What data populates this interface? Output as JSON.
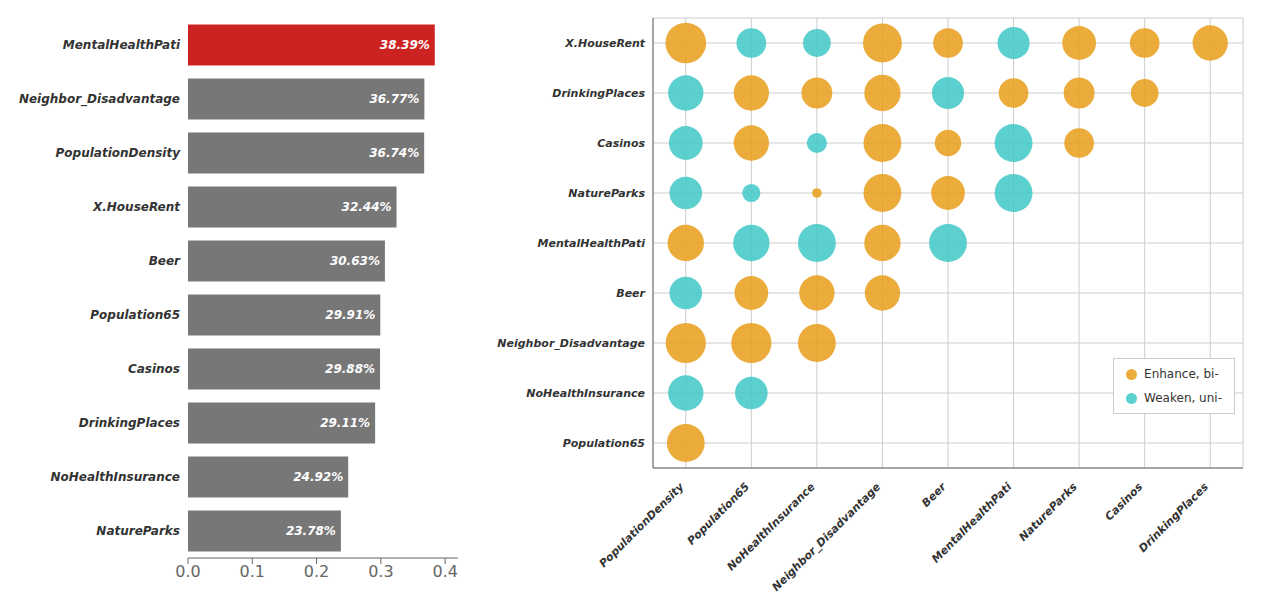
{
  "chart_data": [
    {
      "type": "bar",
      "orientation": "horizontal",
      "categories": [
        "MentalHealthPati",
        "Neighbor_Disadvantage",
        "PopulationDensity",
        "X.HouseRent",
        "Beer",
        "Population65",
        "Casinos",
        "DrinkingPlaces",
        "NoHealthInsurance",
        "NatureParks"
      ],
      "values": [
        0.3839,
        0.3677,
        0.3674,
        0.3244,
        0.3063,
        0.2991,
        0.2988,
        0.2911,
        0.2492,
        0.2378
      ],
      "value_labels": [
        "38.39%",
        "36.77%",
        "36.74%",
        "32.44%",
        "30.63%",
        "29.91%",
        "29.88%",
        "29.11%",
        "24.92%",
        "23.78%"
      ],
      "data_labels": true,
      "colors": [
        "#cc2222",
        "#777777",
        "#777777",
        "#777777",
        "#777777",
        "#777777",
        "#777777",
        "#777777",
        "#777777",
        "#777777"
      ],
      "xlim": [
        0,
        0.42
      ],
      "xticks": [
        {
          "value": 0,
          "label": "0.0"
        },
        0.1,
        0.2,
        0.3,
        0.4
      ],
      "grid": false
    },
    {
      "type": "scatter",
      "x_categories": [
        "PopulationDensity",
        "Population65",
        "NoHealthInsurance",
        "Neighbor_Disadvantage",
        "Beer",
        "MentalHealthPati",
        "NatureParks",
        "Casinos",
        "DrinkingPlaces"
      ],
      "y_categories": [
        "X.HouseRent",
        "DrinkingPlaces",
        "Casinos",
        "NatureParks",
        "MentalHealthPati",
        "Beer",
        "Neighbor_Disadvantage",
        "NoHealthInsurance",
        "Population65"
      ],
      "grid": true,
      "legend": "lower right",
      "series": [
        {
          "name": "Enhance, bi-",
          "color": "#E8A020",
          "x": [
            "PopulationDensity",
            "Neighbor_Disadvantage",
            "Beer",
            "NatureParks",
            "Casinos",
            "DrinkingPlaces",
            "Population65",
            "NoHealthInsurance",
            "Neighbor_Disadvantage",
            "MentalHealthPati",
            "NatureParks",
            "Casinos",
            "Population65",
            "Neighbor_Disadvantage",
            "Beer",
            "NatureParks",
            "NoHealthInsurance",
            "Neighbor_Disadvantage",
            "Beer",
            "PopulationDensity",
            "Neighbor_Disadvantage",
            "Population65",
            "NoHealthInsurance",
            "Neighbor_Disadvantage",
            "PopulationDensity",
            "Population65",
            "NoHealthInsurance",
            "PopulationDensity"
          ],
          "y": [
            "X.HouseRent",
            "X.HouseRent",
            "X.HouseRent",
            "X.HouseRent",
            "X.HouseRent",
            "X.HouseRent",
            "DrinkingPlaces",
            "DrinkingPlaces",
            "DrinkingPlaces",
            "DrinkingPlaces",
            "DrinkingPlaces",
            "DrinkingPlaces",
            "Casinos",
            "Casinos",
            "Casinos",
            "Casinos",
            "NatureParks",
            "NatureParks",
            "NatureParks",
            "MentalHealthPati",
            "MentalHealthPati",
            "Beer",
            "Beer",
            "Beer",
            "Neighbor_Disadvantage",
            "Neighbor_Disadvantage",
            "Neighbor_Disadvantage",
            "Population65"
          ],
          "sizes": [
            900,
            820,
            480,
            620,
            480,
            680,
            680,
            520,
            720,
            480,
            520,
            420,
            680,
            780,
            380,
            480,
            50,
            780,
            620,
            720,
            720,
            620,
            680,
            680,
            880,
            880,
            780,
            780
          ]
        },
        {
          "name": "Weaken, uni-",
          "color": "#45C8C8",
          "x": [
            "Population65",
            "NoHealthInsurance",
            "MentalHealthPati",
            "PopulationDensity",
            "Beer",
            "PopulationDensity",
            "NoHealthInsurance",
            "MentalHealthPati",
            "PopulationDensity",
            "Population65",
            "MentalHealthPati",
            "Population65",
            "NoHealthInsurance",
            "Beer",
            "PopulationDensity",
            "PopulationDensity",
            "Population65"
          ],
          "y": [
            "X.HouseRent",
            "X.HouseRent",
            "X.HouseRent",
            "DrinkingPlaces",
            "DrinkingPlaces",
            "Casinos",
            "Casinos",
            "Casinos",
            "NatureParks",
            "NatureParks",
            "NatureParks",
            "MentalHealthPati",
            "MentalHealthPati",
            "MentalHealthPati",
            "Beer",
            "NoHealthInsurance",
            "NoHealthInsurance"
          ],
          "sizes": [
            480,
            420,
            560,
            680,
            560,
            620,
            220,
            780,
            580,
            180,
            780,
            720,
            780,
            780,
            580,
            680,
            580
          ]
        }
      ]
    }
  ]
}
